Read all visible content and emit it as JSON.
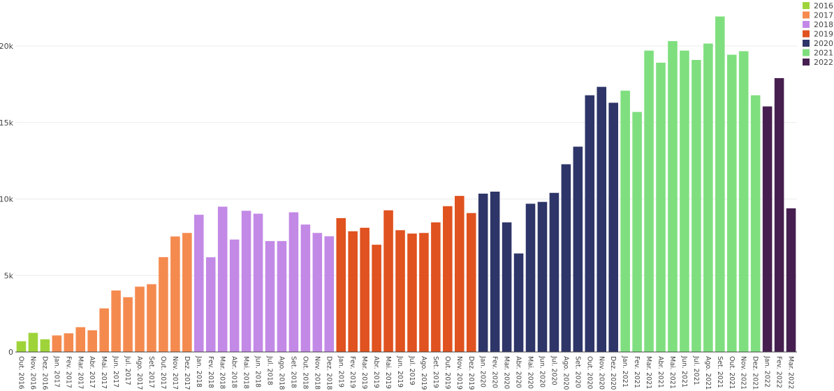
{
  "chart_data": {
    "type": "bar",
    "title": "",
    "xlabel": "",
    "ylabel": "",
    "ylim": [
      0,
      22500
    ],
    "grid": true,
    "legend_position": "top-right",
    "y_ticks": [
      0,
      5000,
      10000,
      15000,
      20000
    ],
    "y_tick_labels": [
      "0",
      "5k",
      "10k",
      "15k",
      "20k"
    ],
    "legend": [
      {
        "name": "2016",
        "color": "#9ed43a"
      },
      {
        "name": "2017",
        "color": "#f58a4f"
      },
      {
        "name": "2018",
        "color": "#c389e6"
      },
      {
        "name": "2019",
        "color": "#e0521f"
      },
      {
        "name": "2020",
        "color": "#2e3568"
      },
      {
        "name": "2021",
        "color": "#7fdf7f"
      },
      {
        "name": "2022",
        "color": "#461f50"
      }
    ],
    "categories": [
      "Out. 2016",
      "Nov. 2016",
      "Dez. 2016",
      "Jan. 2017",
      "Fev. 2017",
      "Mar. 2017",
      "Abr. 2017",
      "Mai. 2017",
      "Jun. 2017",
      "Jul. 2017",
      "Ago. 2017",
      "Set. 2017",
      "Out. 2017",
      "Nov. 2017",
      "Dez. 2017",
      "Jan. 2018",
      "Fev. 2018",
      "Mar. 2018",
      "Abr. 2018",
      "Mai. 2018",
      "Jun. 2018",
      "Jul. 2018",
      "Ago. 2018",
      "Set. 2018",
      "Out. 2018",
      "Nov. 2018",
      "Dez. 2018",
      "Jan. 2019",
      "Fev. 2019",
      "Mar. 2019",
      "Abr. 2019",
      "Mai. 2019",
      "Jun. 2019",
      "Jul. 2019",
      "Ago. 2019",
      "Set. 2019",
      "Out. 2019",
      "Nov. 2019",
      "Dez. 2019",
      "Jan. 2020",
      "Fev. 2020",
      "Mar. 2020",
      "Abr. 2020",
      "Mai. 2020",
      "Jun. 2020",
      "Jul. 2020",
      "Ago. 2020",
      "Set. 2020",
      "Out. 2020",
      "Nov. 2020",
      "Dez. 2020",
      "Jan. 2021",
      "Fev. 2021",
      "Mar. 2021",
      "Abr. 2021",
      "Mai. 2021",
      "Jun. 2021",
      "Jul. 2021",
      "Ago. 2021",
      "Set. 2021",
      "Out. 2021",
      "Nov. 2021",
      "Dez. 2021",
      "Jan. 2022",
      "Fev. 2022",
      "Mar. 2022"
    ],
    "values": [
      700,
      1250,
      830,
      1080,
      1220,
      1620,
      1420,
      2850,
      4020,
      3580,
      4270,
      4430,
      6200,
      7550,
      7780,
      8970,
      6190,
      9500,
      7350,
      9230,
      9040,
      7250,
      7250,
      9130,
      8330,
      7780,
      7560,
      8750,
      7890,
      8120,
      7010,
      9260,
      7960,
      7740,
      7780,
      8470,
      9530,
      10200,
      9080,
      10350,
      10480,
      8470,
      6440,
      9690,
      9810,
      10400,
      12270,
      13420,
      16780,
      17330,
      16290,
      17080,
      15690,
      19700,
      18910,
      20320,
      19700,
      19090,
      20160,
      21930,
      19430,
      19660,
      16780,
      16050,
      17900,
      9390
    ],
    "series_year": [
      "2016",
      "2016",
      "2016",
      "2017",
      "2017",
      "2017",
      "2017",
      "2017",
      "2017",
      "2017",
      "2017",
      "2017",
      "2017",
      "2017",
      "2017",
      "2018",
      "2018",
      "2018",
      "2018",
      "2018",
      "2018",
      "2018",
      "2018",
      "2018",
      "2018",
      "2018",
      "2018",
      "2019",
      "2019",
      "2019",
      "2019",
      "2019",
      "2019",
      "2019",
      "2019",
      "2019",
      "2019",
      "2019",
      "2019",
      "2020",
      "2020",
      "2020",
      "2020",
      "2020",
      "2020",
      "2020",
      "2020",
      "2020",
      "2020",
      "2020",
      "2020",
      "2021",
      "2021",
      "2021",
      "2021",
      "2021",
      "2021",
      "2021",
      "2021",
      "2021",
      "2021",
      "2021",
      "2021",
      "2022",
      "2022",
      "2022"
    ]
  }
}
